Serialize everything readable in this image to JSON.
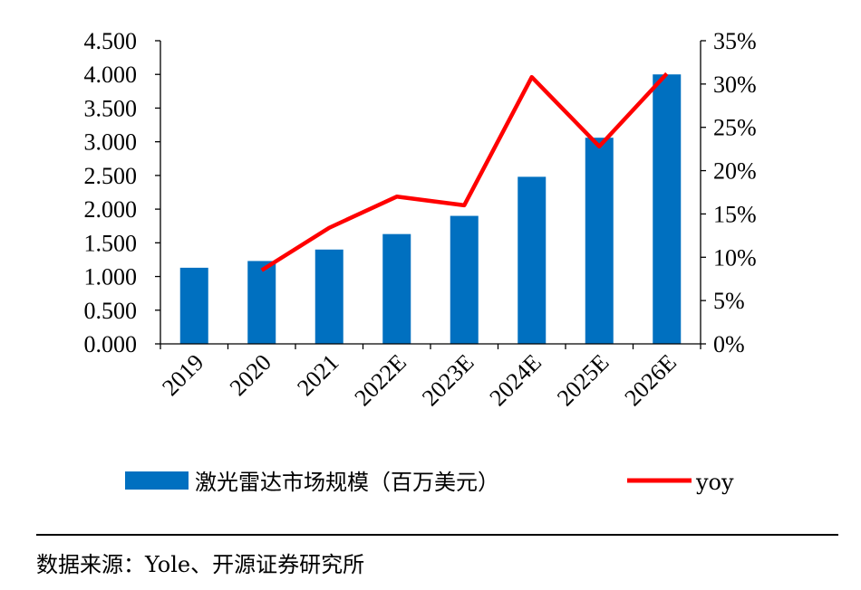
{
  "chart_data": {
    "type": "bar+line",
    "categories": [
      "2019",
      "2020",
      "2021",
      "2022E",
      "2023E",
      "2024E",
      "2025E",
      "2026E"
    ],
    "series": [
      {
        "name": "激光雷达市场规模（百万美元）",
        "type": "bar",
        "axis": "left",
        "color": "#0070C0",
        "values": [
          1.13,
          1.23,
          1.4,
          1.63,
          1.9,
          2.48,
          3.06,
          4.0
        ]
      },
      {
        "name": "yoy",
        "type": "line",
        "axis": "right",
        "color": "#FF0000",
        "values": [
          null,
          0.085,
          0.134,
          0.17,
          0.16,
          0.308,
          0.228,
          0.312
        ]
      }
    ],
    "y_left": {
      "lim": [
        0,
        4.5
      ],
      "ticks": [
        "0.000",
        "0.500",
        "1.000",
        "1.500",
        "2.000",
        "2.500",
        "3.000",
        "3.500",
        "4.000",
        "4.500"
      ]
    },
    "y_right": {
      "lim": [
        0,
        0.35
      ],
      "ticks": [
        "0%",
        "5%",
        "10%",
        "15%",
        "20%",
        "25%",
        "30%",
        "35%"
      ]
    },
    "legend_position": "bottom",
    "grid": false
  },
  "source_text": "数据来源：Yole、开源证券研究所"
}
